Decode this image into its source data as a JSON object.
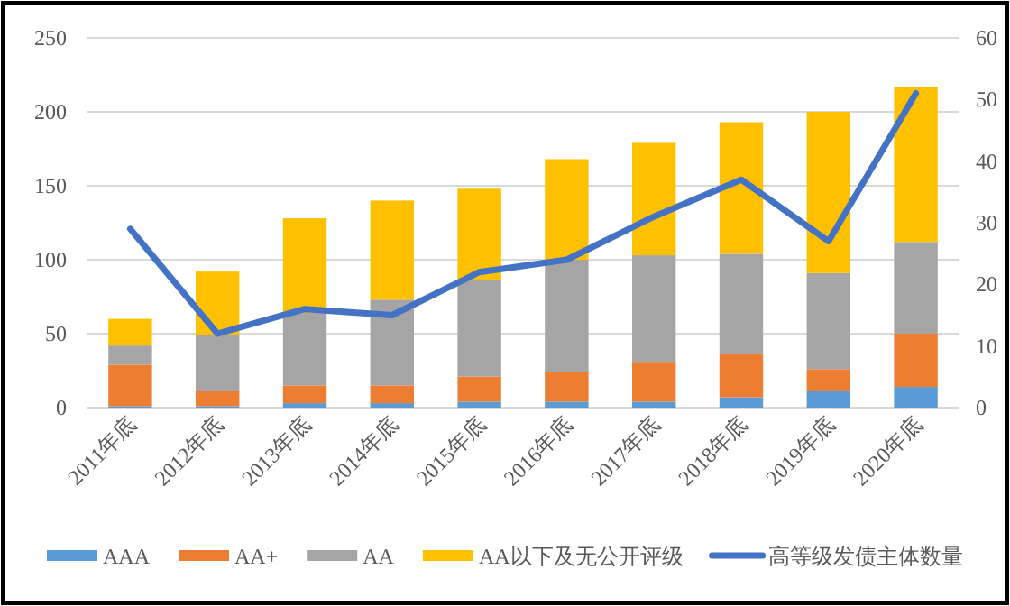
{
  "chart_data": {
    "type": "bar",
    "stacked": true,
    "grid": "y",
    "legend": "bottom",
    "categories": [
      "2011年底",
      "2012年底",
      "2013年底",
      "2014年底",
      "2015年底",
      "2016年底",
      "2017年底",
      "2018年底",
      "2019年底",
      "2020年底"
    ],
    "ylim": [
      0,
      250
    ],
    "yticks": [
      0,
      50,
      100,
      150,
      200,
      250
    ],
    "y2lim": [
      0,
      60
    ],
    "y2ticks": [
      0,
      10,
      20,
      30,
      40,
      50,
      60
    ],
    "series": [
      {
        "name": "AAA",
        "color": "#5b9bd5",
        "values": [
          1,
          1,
          3,
          3,
          4,
          4,
          4,
          7,
          11,
          14
        ]
      },
      {
        "name": "AA+",
        "color": "#ed7d31",
        "values": [
          28,
          10,
          12,
          12,
          17,
          20,
          27,
          29,
          15,
          36
        ]
      },
      {
        "name": "AA",
        "color": "#a5a5a5",
        "values": [
          13,
          38,
          49,
          58,
          65,
          76,
          72,
          68,
          65,
          62
        ]
      },
      {
        "name": "AA以下及无公开评级",
        "color": "#ffc000",
        "values": [
          18,
          43,
          64,
          67,
          62,
          68,
          76,
          89,
          109,
          105
        ]
      },
      {
        "name": "高等级发债主体数量",
        "color": "#4472c4",
        "type": "line",
        "axis": "y2",
        "values": [
          29,
          12,
          16,
          15,
          22,
          24,
          31,
          37,
          27,
          51
        ]
      }
    ]
  }
}
